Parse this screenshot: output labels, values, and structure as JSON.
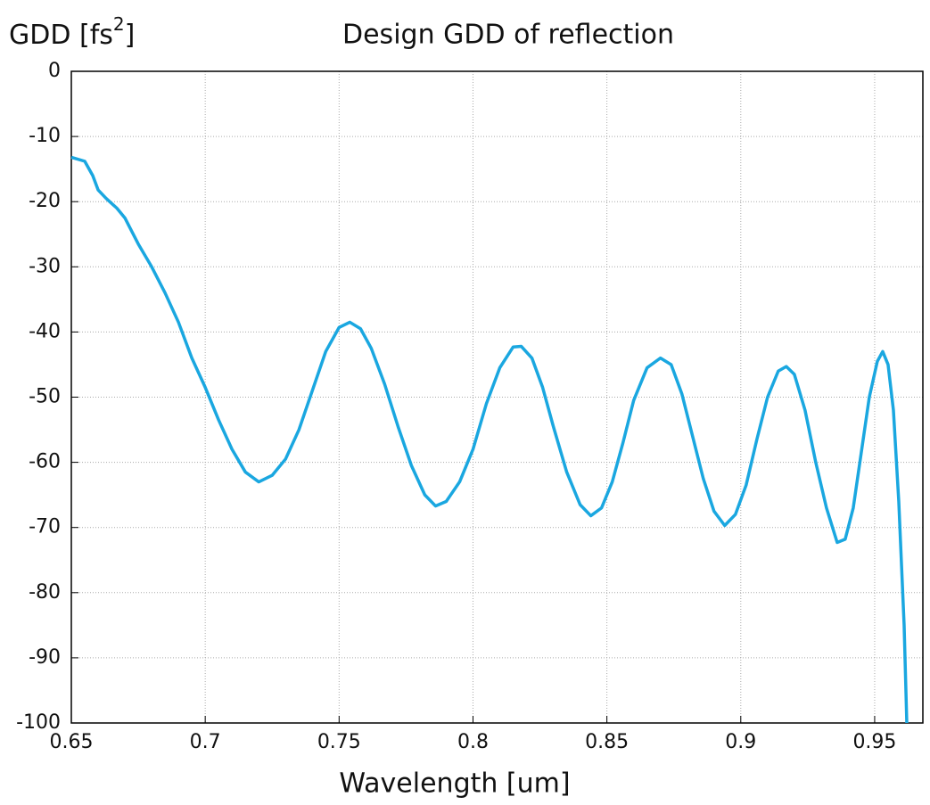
{
  "chart_data": {
    "type": "line",
    "title": "Design GDD of reflection",
    "x_label": "Wavelength [um]",
    "y_label": {
      "text": "GDD [fs",
      "sup": "2",
      "end": "]"
    },
    "xlim": [
      0.65,
      0.968
    ],
    "ylim": [
      -100,
      0
    ],
    "xticks": [
      0.65,
      0.7,
      0.75,
      0.8,
      0.85,
      0.9,
      0.95
    ],
    "yticks": [
      0,
      -10,
      -20,
      -30,
      -40,
      -50,
      -60,
      -70,
      -80,
      -90,
      -100
    ],
    "grid": true,
    "x": [
      0.65,
      0.655,
      0.658,
      0.66,
      0.663,
      0.667,
      0.67,
      0.675,
      0.68,
      0.685,
      0.69,
      0.695,
      0.7,
      0.705,
      0.71,
      0.715,
      0.72,
      0.725,
      0.73,
      0.735,
      0.74,
      0.745,
      0.75,
      0.754,
      0.758,
      0.762,
      0.767,
      0.772,
      0.777,
      0.782,
      0.786,
      0.79,
      0.795,
      0.8,
      0.805,
      0.81,
      0.815,
      0.818,
      0.822,
      0.826,
      0.83,
      0.835,
      0.84,
      0.844,
      0.848,
      0.852,
      0.856,
      0.86,
      0.865,
      0.87,
      0.874,
      0.878,
      0.882,
      0.886,
      0.89,
      0.894,
      0.898,
      0.902,
      0.906,
      0.91,
      0.914,
      0.917,
      0.92,
      0.924,
      0.928,
      0.932,
      0.936,
      0.939,
      0.942,
      0.945,
      0.948,
      0.951,
      0.953,
      0.955,
      0.957,
      0.959,
      0.961,
      0.962
    ],
    "series": [
      {
        "color": "#1aa7e0",
        "values": [
          -13.2,
          -13.8,
          -16,
          -18.2,
          -19.5,
          -21,
          -22.5,
          -26.5,
          -30,
          -34,
          -38.5,
          -44,
          -48.5,
          -53.5,
          -58,
          -61.5,
          -63,
          -62,
          -59.5,
          -55,
          -49,
          -43,
          -39.3,
          -38.5,
          -39.5,
          -42.5,
          -48,
          -54.5,
          -60.5,
          -65,
          -66.7,
          -66,
          -63,
          -58,
          -51,
          -45.5,
          -42.3,
          -42.2,
          -44,
          -48.5,
          -54.5,
          -61.5,
          -66.5,
          -68.2,
          -67,
          -63,
          -57,
          -50.5,
          -45.5,
          -44,
          -45,
          -49.5,
          -56,
          -62.5,
          -67.5,
          -69.7,
          -68,
          -63.5,
          -56.5,
          -50,
          -46,
          -45.3,
          -46.5,
          -52,
          -60,
          -67,
          -72.3,
          -71.8,
          -67,
          -58.5,
          -50,
          -44.5,
          -43,
          -45,
          -52,
          -66,
          -85,
          -100
        ]
      }
    ]
  }
}
